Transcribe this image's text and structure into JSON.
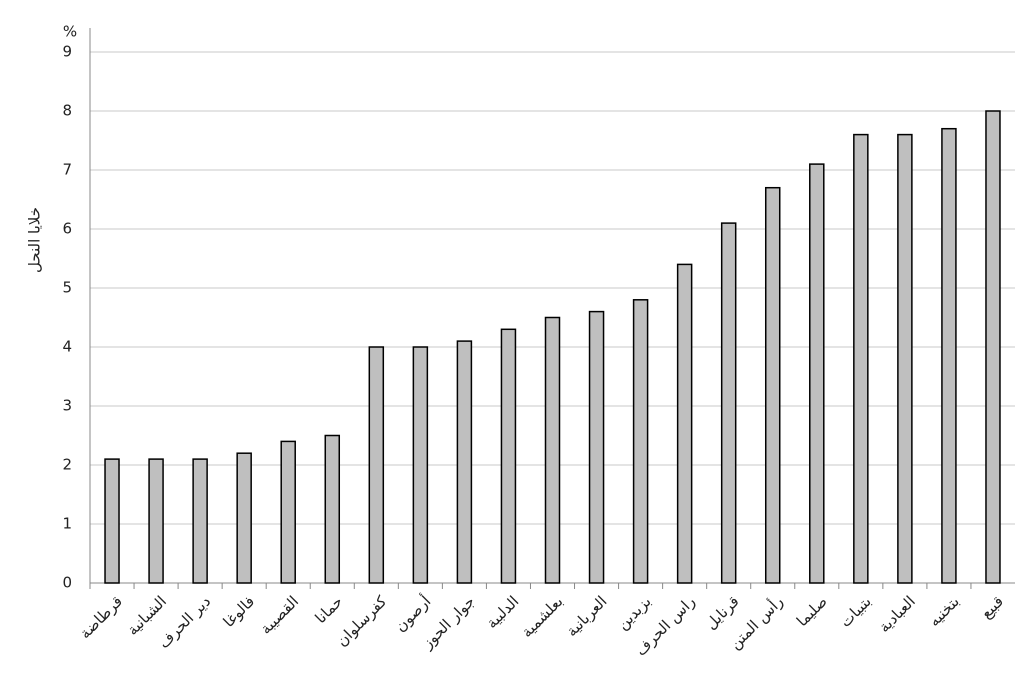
{
  "chart_data": {
    "type": "bar",
    "y_axis_label": "خلايا النحل",
    "y_unit": "%",
    "categories": [
      "قرطاضة",
      "الشبانية",
      "دير الحرف",
      "فالوغا",
      "القصيبة",
      "حمانا",
      "كفرسلوان",
      "أرصون",
      "جوار الحوز",
      "الدلبية",
      "بعلشمية",
      "العربانية",
      "بزبدين",
      "راس الحرف",
      "قرنايل",
      "رأس المتن",
      "صليما",
      "بتبيات",
      "العبادية",
      "بتخنيه",
      "قبيع"
    ],
    "values": [
      2.1,
      2.1,
      2.1,
      2.2,
      2.4,
      2.5,
      4.0,
      4.0,
      4.1,
      4.3,
      4.5,
      4.6,
      4.8,
      5.4,
      6.1,
      6.7,
      7.1,
      7.6,
      7.6,
      7.7,
      8.0
    ],
    "color": "#bfbfbf",
    "ylim": [
      0,
      9
    ],
    "yticks": [
      0,
      1,
      2,
      3,
      4,
      5,
      6,
      7,
      8,
      9
    ],
    "grid": true
  }
}
